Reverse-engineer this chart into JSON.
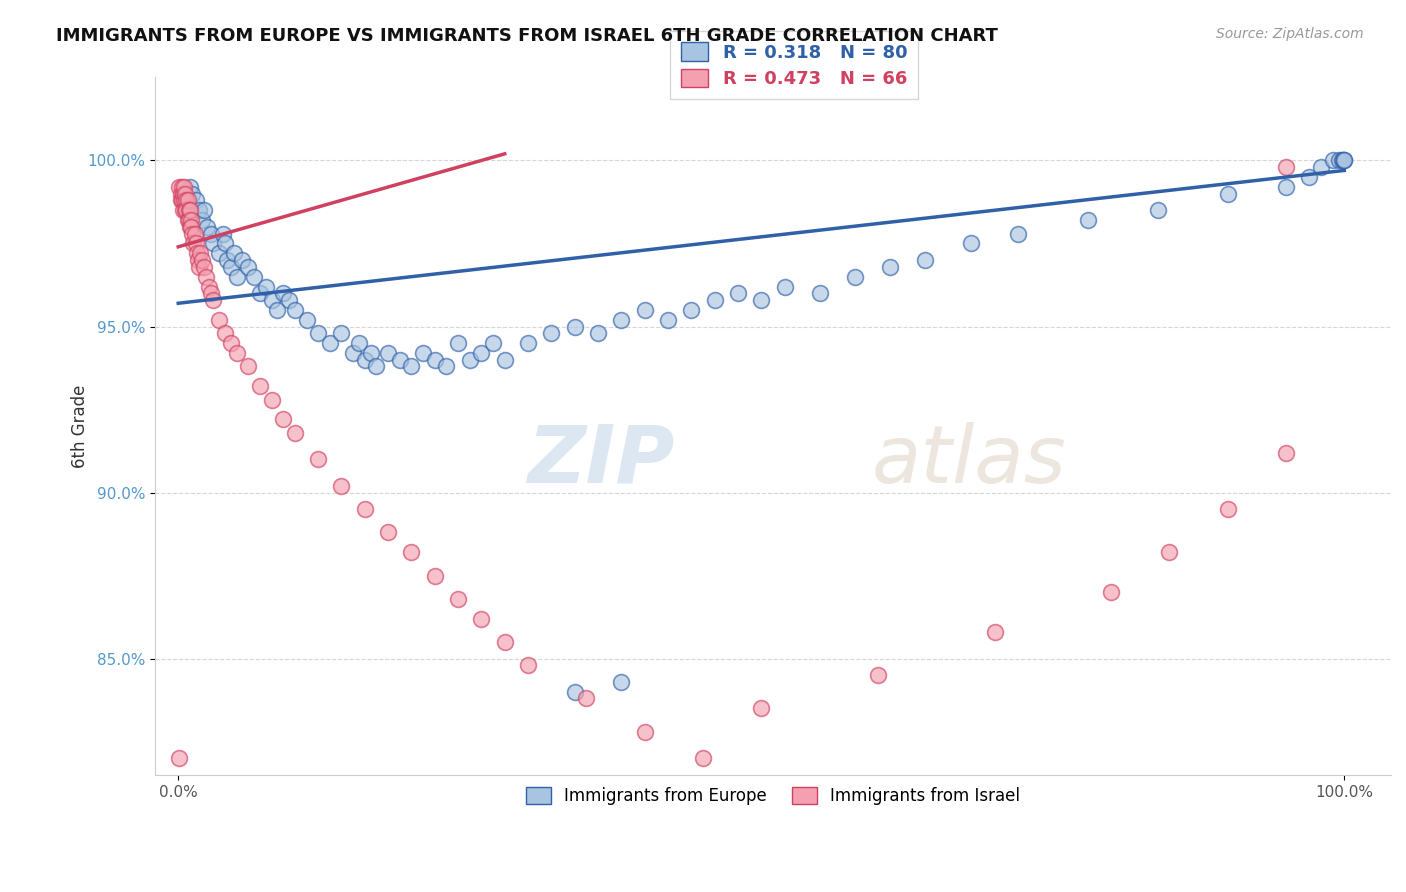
{
  "title": "IMMIGRANTS FROM EUROPE VS IMMIGRANTS FROM ISRAEL 6TH GRADE CORRELATION CHART",
  "source_text": "Source: ZipAtlas.com",
  "ylabel": "6th Grade",
  "legend_r_europe": "R = 0.318",
  "legend_n_europe": "N = 80",
  "legend_r_israel": "R = 0.473",
  "legend_n_israel": "N = 66",
  "europe_color": "#a8c4e0",
  "israel_color": "#f4a0b0",
  "europe_line_color": "#3060a8",
  "israel_line_color": "#d04060",
  "watermark_zip": "ZIP",
  "watermark_atlas": "atlas",
  "blue_scatter_x": [
    0.005,
    0.008,
    0.01,
    0.012,
    0.015,
    0.018,
    0.02,
    0.022,
    0.025,
    0.028,
    0.03,
    0.035,
    0.038,
    0.04,
    0.042,
    0.045,
    0.048,
    0.05,
    0.055,
    0.06,
    0.065,
    0.07,
    0.075,
    0.08,
    0.085,
    0.09,
    0.095,
    0.1,
    0.11,
    0.12,
    0.13,
    0.14,
    0.15,
    0.155,
    0.16,
    0.165,
    0.17,
    0.18,
    0.19,
    0.2,
    0.21,
    0.22,
    0.23,
    0.24,
    0.25,
    0.26,
    0.27,
    0.28,
    0.3,
    0.32,
    0.34,
    0.36,
    0.38,
    0.4,
    0.42,
    0.44,
    0.46,
    0.48,
    0.5,
    0.52,
    0.55,
    0.58,
    0.61,
    0.64,
    0.68,
    0.72,
    0.78,
    0.84,
    0.9,
    0.95,
    0.97,
    0.98,
    0.99,
    0.995,
    0.998,
    0.999,
    1.0,
    1.0,
    0.34,
    0.38
  ],
  "blue_scatter_y": [
    0.988,
    0.985,
    0.992,
    0.99,
    0.988,
    0.985,
    0.982,
    0.985,
    0.98,
    0.978,
    0.975,
    0.972,
    0.978,
    0.975,
    0.97,
    0.968,
    0.972,
    0.965,
    0.97,
    0.968,
    0.965,
    0.96,
    0.962,
    0.958,
    0.955,
    0.96,
    0.958,
    0.955,
    0.952,
    0.948,
    0.945,
    0.948,
    0.942,
    0.945,
    0.94,
    0.942,
    0.938,
    0.942,
    0.94,
    0.938,
    0.942,
    0.94,
    0.938,
    0.945,
    0.94,
    0.942,
    0.945,
    0.94,
    0.945,
    0.948,
    0.95,
    0.948,
    0.952,
    0.955,
    0.952,
    0.955,
    0.958,
    0.96,
    0.958,
    0.962,
    0.96,
    0.965,
    0.968,
    0.97,
    0.975,
    0.978,
    0.982,
    0.985,
    0.99,
    0.992,
    0.995,
    0.998,
    1.0,
    1.0,
    1.0,
    1.0,
    1.0,
    1.0,
    0.84,
    0.843
  ],
  "pink_scatter_x": [
    0.001,
    0.002,
    0.002,
    0.003,
    0.003,
    0.004,
    0.004,
    0.005,
    0.005,
    0.006,
    0.006,
    0.007,
    0.007,
    0.008,
    0.008,
    0.009,
    0.009,
    0.01,
    0.01,
    0.011,
    0.011,
    0.012,
    0.013,
    0.014,
    0.015,
    0.016,
    0.017,
    0.018,
    0.019,
    0.02,
    0.022,
    0.024,
    0.026,
    0.028,
    0.03,
    0.035,
    0.04,
    0.045,
    0.05,
    0.06,
    0.07,
    0.08,
    0.09,
    0.1,
    0.12,
    0.14,
    0.16,
    0.18,
    0.2,
    0.22,
    0.24,
    0.26,
    0.28,
    0.3,
    0.35,
    0.4,
    0.45,
    0.5,
    0.6,
    0.7,
    0.8,
    0.85,
    0.9,
    0.95,
    0.001,
    0.95
  ],
  "pink_scatter_y": [
    0.992,
    0.99,
    0.988,
    0.992,
    0.988,
    0.99,
    0.985,
    0.988,
    0.992,
    0.985,
    0.99,
    0.988,
    0.985,
    0.982,
    0.988,
    0.985,
    0.982,
    0.98,
    0.985,
    0.982,
    0.98,
    0.978,
    0.975,
    0.978,
    0.975,
    0.972,
    0.97,
    0.968,
    0.972,
    0.97,
    0.968,
    0.965,
    0.962,
    0.96,
    0.958,
    0.952,
    0.948,
    0.945,
    0.942,
    0.938,
    0.932,
    0.928,
    0.922,
    0.918,
    0.91,
    0.902,
    0.895,
    0.888,
    0.882,
    0.875,
    0.868,
    0.862,
    0.855,
    0.848,
    0.838,
    0.828,
    0.82,
    0.835,
    0.845,
    0.858,
    0.87,
    0.882,
    0.895,
    0.912,
    0.82,
    0.998
  ],
  "blue_trend_x": [
    0.0,
    1.0
  ],
  "blue_trend_y": [
    0.957,
    0.997
  ],
  "pink_trend_x": [
    0.0,
    0.28
  ],
  "pink_trend_y": [
    0.974,
    1.002
  ],
  "xlim": [
    -0.02,
    1.04
  ],
  "ylim": [
    0.815,
    1.025
  ],
  "yticks": [
    0.85,
    0.9,
    0.95,
    1.0
  ],
  "ytick_labels": [
    "85.0%",
    "90.0%",
    "95.0%",
    "100.0%"
  ],
  "xtick_left": "0.0%",
  "xtick_right": "100.0%"
}
